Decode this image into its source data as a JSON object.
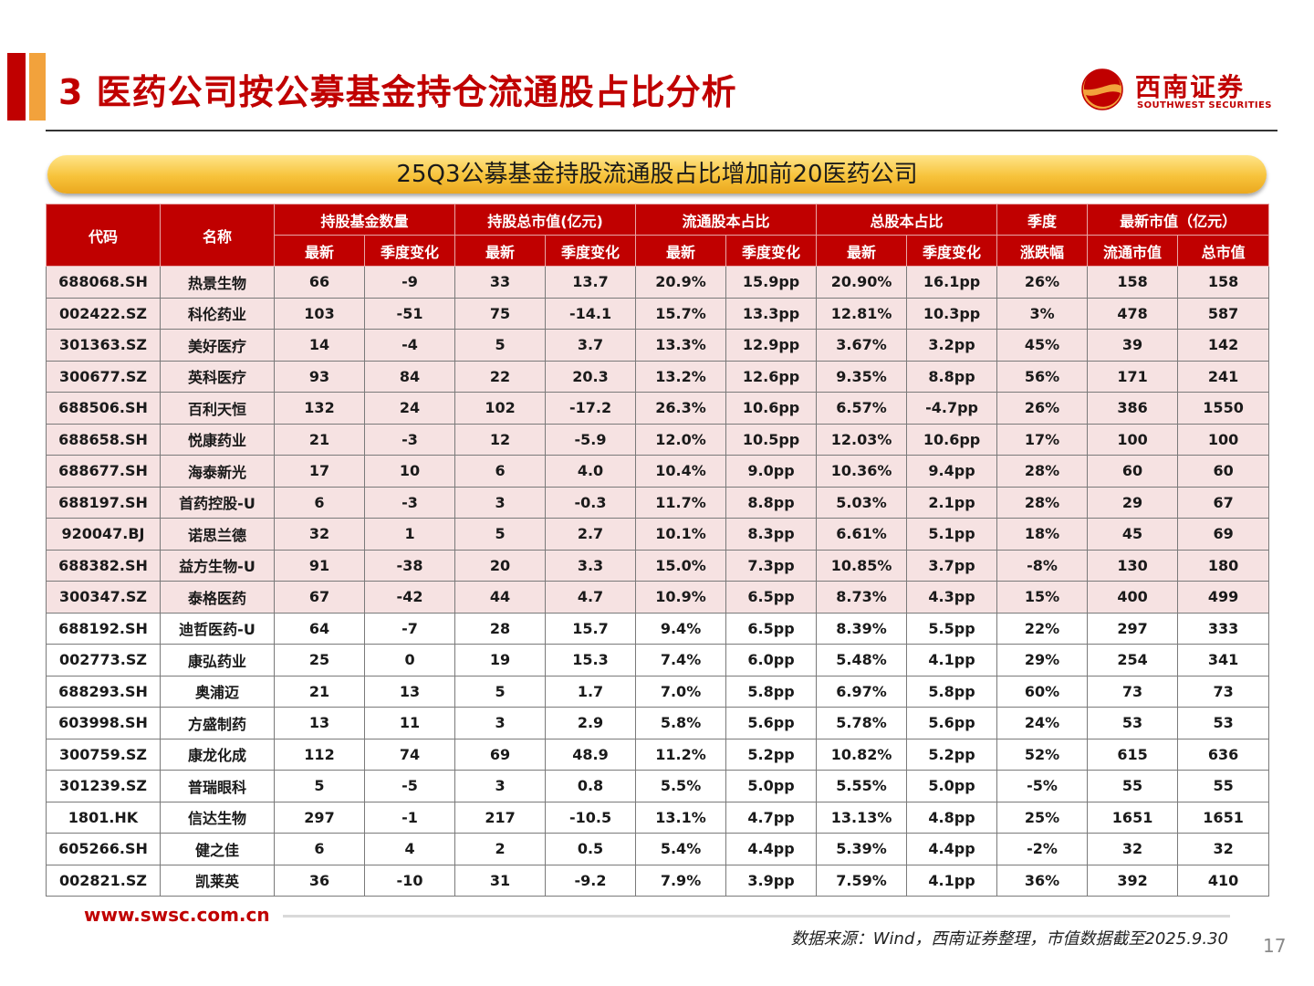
{
  "header": {
    "title": "3 医药公司按公募基金持仓流通股占比分析",
    "logo_cn": "西南证券",
    "logo_en": "SOUTHWEST SECURITIES"
  },
  "banner": {
    "text": "25Q3公募基金持股流通股占比增加前20医药公司"
  },
  "table": {
    "group_headers": [
      "代码",
      "名称",
      "持股基金数量",
      "持股总市值(亿元)",
      "流通股本占比",
      "总股本占比",
      "季度",
      "最新市值（亿元）"
    ],
    "sub_headers": [
      "最新",
      "季度变化",
      "最新",
      "季度变化",
      "最新",
      "季度变化",
      "最新",
      "季度变化",
      "涨跌幅",
      "流通市值",
      "总市值"
    ],
    "rows": [
      [
        "688068.SH",
        "热景生物",
        "66",
        "-9",
        "33",
        "13.7",
        "20.9%",
        "15.9pp",
        "20.90%",
        "16.1pp",
        "26%",
        "158",
        "158"
      ],
      [
        "002422.SZ",
        "科伦药业",
        "103",
        "-51",
        "75",
        "-14.1",
        "15.7%",
        "13.3pp",
        "12.81%",
        "10.3pp",
        "3%",
        "478",
        "587"
      ],
      [
        "301363.SZ",
        "美好医疗",
        "14",
        "-4",
        "5",
        "3.7",
        "13.3%",
        "12.9pp",
        "3.67%",
        "3.2pp",
        "45%",
        "39",
        "142"
      ],
      [
        "300677.SZ",
        "英科医疗",
        "93",
        "84",
        "22",
        "20.3",
        "13.2%",
        "12.6pp",
        "9.35%",
        "8.8pp",
        "56%",
        "171",
        "241"
      ],
      [
        "688506.SH",
        "百利天恒",
        "132",
        "24",
        "102",
        "-17.2",
        "26.3%",
        "10.6pp",
        "6.57%",
        "-4.7pp",
        "26%",
        "386",
        "1550"
      ],
      [
        "688658.SH",
        "悦康药业",
        "21",
        "-3",
        "12",
        "-5.9",
        "12.0%",
        "10.5pp",
        "12.03%",
        "10.6pp",
        "17%",
        "100",
        "100"
      ],
      [
        "688677.SH",
        "海泰新光",
        "17",
        "10",
        "6",
        "4.0",
        "10.4%",
        "9.0pp",
        "10.36%",
        "9.4pp",
        "28%",
        "60",
        "60"
      ],
      [
        "688197.SH",
        "首药控股-U",
        "6",
        "-3",
        "3",
        "-0.3",
        "11.7%",
        "8.8pp",
        "5.03%",
        "2.1pp",
        "28%",
        "29",
        "67"
      ],
      [
        "920047.BJ",
        "诺思兰德",
        "32",
        "1",
        "5",
        "2.7",
        "10.1%",
        "8.3pp",
        "6.61%",
        "5.1pp",
        "18%",
        "45",
        "69"
      ],
      [
        "688382.SH",
        "益方生物-U",
        "91",
        "-38",
        "20",
        "3.3",
        "15.0%",
        "7.3pp",
        "10.85%",
        "3.7pp",
        "-8%",
        "130",
        "180"
      ],
      [
        "300347.SZ",
        "泰格医药",
        "67",
        "-42",
        "44",
        "4.7",
        "10.9%",
        "6.5pp",
        "8.73%",
        "4.3pp",
        "15%",
        "400",
        "499"
      ],
      [
        "688192.SH",
        "迪哲医药-U",
        "64",
        "-7",
        "28",
        "15.7",
        "9.4%",
        "6.5pp",
        "8.39%",
        "5.5pp",
        "22%",
        "297",
        "333"
      ],
      [
        "002773.SZ",
        "康弘药业",
        "25",
        "0",
        "19",
        "15.3",
        "7.4%",
        "6.0pp",
        "5.48%",
        "4.1pp",
        "29%",
        "254",
        "341"
      ],
      [
        "688293.SH",
        "奥浦迈",
        "21",
        "13",
        "5",
        "1.7",
        "7.0%",
        "5.8pp",
        "6.97%",
        "5.8pp",
        "60%",
        "73",
        "73"
      ],
      [
        "603998.SH",
        "方盛制药",
        "13",
        "11",
        "3",
        "2.9",
        "5.8%",
        "5.6pp",
        "5.78%",
        "5.6pp",
        "24%",
        "53",
        "53"
      ],
      [
        "300759.SZ",
        "康龙化成",
        "112",
        "74",
        "69",
        "48.9",
        "11.2%",
        "5.2pp",
        "10.82%",
        "5.2pp",
        "52%",
        "615",
        "636"
      ],
      [
        "301239.SZ",
        "普瑞眼科",
        "5",
        "-5",
        "3",
        "0.8",
        "5.5%",
        "5.0pp",
        "5.55%",
        "5.0pp",
        "-5%",
        "55",
        "55"
      ],
      [
        "1801.HK",
        "信达生物",
        "297",
        "-1",
        "217",
        "-10.5",
        "13.1%",
        "4.7pp",
        "13.13%",
        "4.8pp",
        "25%",
        "1651",
        "1651"
      ],
      [
        "605266.SH",
        "健之佳",
        "6",
        "4",
        "2",
        "0.5",
        "5.4%",
        "4.4pp",
        "5.39%",
        "4.4pp",
        "-2%",
        "32",
        "32"
      ],
      [
        "002821.SZ",
        "凯莱英",
        "36",
        "-10",
        "31",
        "-9.2",
        "7.9%",
        "3.9pp",
        "7.59%",
        "4.1pp",
        "36%",
        "392",
        "410"
      ]
    ]
  },
  "footer": {
    "url": "www.swsc.com.cn",
    "source": "数据来源：Wind，西南证券整理，市值数据截至2025.9.30",
    "page_number": "17"
  },
  "colors": {
    "brand_red": "#c00000",
    "accent_orange": "#f2a23c",
    "banner_gold": "#f7c33b",
    "row_pink": "#f6e2e2"
  },
  "icons": {
    "logo": "southwest-securities-logo-icon"
  }
}
